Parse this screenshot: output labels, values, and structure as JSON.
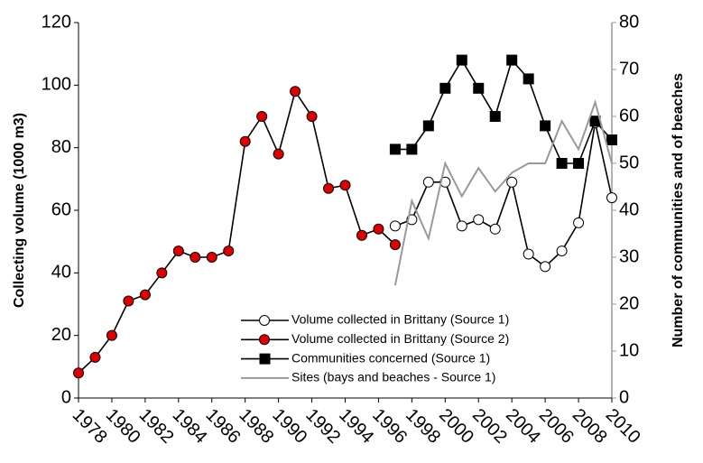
{
  "chart_data": {
    "type": "line",
    "x": [
      1978,
      1979,
      1980,
      1981,
      1982,
      1983,
      1984,
      1985,
      1986,
      1987,
      1988,
      1989,
      1990,
      1991,
      1992,
      1993,
      1994,
      1995,
      1996,
      1997,
      1998,
      1999,
      2000,
      2001,
      2002,
      2003,
      2004,
      2005,
      2006,
      2007,
      2008,
      2009,
      2010
    ],
    "xlim": [
      1978,
      2010
    ],
    "xticks": [
      1978,
      1980,
      1982,
      1984,
      1986,
      1988,
      1990,
      1992,
      1994,
      1996,
      1998,
      2000,
      2002,
      2004,
      2006,
      2008,
      2010
    ],
    "ylim": [
      0,
      120
    ],
    "yticks": [
      0,
      20,
      40,
      60,
      80,
      100,
      120
    ],
    "y2lim": [
      0,
      80
    ],
    "y2ticks": [
      0,
      10,
      20,
      30,
      40,
      50,
      60,
      70,
      80
    ],
    "ylabel": "Collecting volume (1000 m3)",
    "y2label": "Number of communities and of beaches",
    "legend": "bottom-center",
    "series": [
      {
        "name": "Volume collected in Brittany (Source 1)",
        "marker": "circle-open",
        "color": "#000000",
        "fill": "#ffffff",
        "axis": "y",
        "values": [
          null,
          null,
          null,
          null,
          null,
          null,
          null,
          null,
          null,
          null,
          null,
          null,
          null,
          null,
          null,
          null,
          null,
          null,
          null,
          55,
          57,
          69,
          69,
          55,
          57,
          54,
          69,
          46,
          42,
          47,
          56,
          88,
          64
        ]
      },
      {
        "name": "Volume collected in Brittany (Source 2)",
        "marker": "circle",
        "color": "#000000",
        "fill": "#e00000",
        "axis": "y",
        "values": [
          8,
          13,
          20,
          31,
          33,
          40,
          47,
          45,
          45,
          47,
          82,
          90,
          78,
          98,
          90,
          67,
          68,
          52,
          54,
          49,
          null,
          null,
          null,
          null,
          null,
          null,
          null,
          null,
          null,
          null,
          null,
          null,
          null
        ]
      },
      {
        "name": "Communities concerned (Source 1)",
        "marker": "square",
        "color": "#000000",
        "fill": "#000000",
        "axis": "y2",
        "values": [
          null,
          null,
          null,
          null,
          null,
          null,
          null,
          null,
          null,
          null,
          null,
          null,
          null,
          null,
          null,
          null,
          null,
          null,
          null,
          53,
          53,
          58,
          66,
          72,
          66,
          60,
          72,
          68,
          58,
          50,
          50,
          59,
          55
        ]
      },
      {
        "name": "Sites (bays and beaches - Source 1)",
        "marker": "none",
        "color": "#999999",
        "fill": "none",
        "axis": "y2",
        "values": [
          null,
          null,
          null,
          null,
          null,
          null,
          null,
          null,
          null,
          null,
          null,
          null,
          null,
          null,
          null,
          null,
          null,
          null,
          null,
          24,
          42,
          34,
          50,
          43,
          49,
          44,
          48,
          50,
          50,
          59,
          53,
          63,
          50
        ]
      }
    ]
  }
}
